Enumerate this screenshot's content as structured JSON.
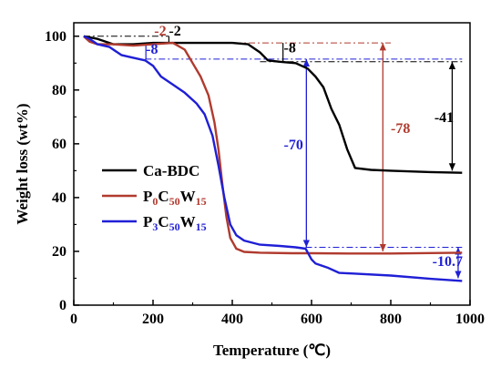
{
  "chart_data": {
    "type": "line",
    "title": "",
    "xlabel": "Temperature (℃)",
    "ylabel": "Weight loss (wt%)",
    "xlim": [
      0,
      1000
    ],
    "ylim": [
      0,
      105
    ],
    "xticks": [
      0,
      200,
      400,
      600,
      800,
      1000
    ],
    "yticks": [
      0,
      20,
      40,
      60,
      80,
      100
    ],
    "xtick_labels": [
      "0",
      "200",
      "400",
      "600",
      "800",
      "1000"
    ],
    "ytick_labels": [
      "0",
      "20",
      "40",
      "60",
      "80",
      "100"
    ],
    "grid": false,
    "legend_position": "center-left",
    "series": [
      {
        "name": "Ca-BDC",
        "name_parts": [
          [
            "Ca-BDC",
            false
          ]
        ],
        "color": "#000000",
        "points": [
          [
            25,
            100
          ],
          [
            60,
            99
          ],
          [
            100,
            97
          ],
          [
            150,
            97
          ],
          [
            200,
            97.5
          ],
          [
            300,
            97.5
          ],
          [
            400,
            97.5
          ],
          [
            440,
            97
          ],
          [
            470,
            94
          ],
          [
            490,
            91
          ],
          [
            520,
            90.5
          ],
          [
            560,
            90
          ],
          [
            590,
            88
          ],
          [
            610,
            85
          ],
          [
            630,
            81
          ],
          [
            650,
            73
          ],
          [
            670,
            67
          ],
          [
            690,
            58
          ],
          [
            710,
            51
          ],
          [
            750,
            50.3
          ],
          [
            800,
            50
          ],
          [
            900,
            49.5
          ],
          [
            980,
            49.2
          ]
        ]
      },
      {
        "name": "P0C50W15",
        "name_parts": [
          [
            "P",
            false
          ],
          [
            "0",
            true
          ],
          [
            "C",
            false
          ],
          [
            "50",
            true
          ],
          [
            "W",
            false
          ],
          [
            "15",
            true
          ]
        ],
        "color": "#b03a2e",
        "points": [
          [
            25,
            100
          ],
          [
            40,
            98
          ],
          [
            60,
            97
          ],
          [
            100,
            97
          ],
          [
            150,
            96.5
          ],
          [
            200,
            97
          ],
          [
            250,
            97.5
          ],
          [
            280,
            95
          ],
          [
            300,
            90
          ],
          [
            320,
            85
          ],
          [
            340,
            78
          ],
          [
            355,
            68
          ],
          [
            365,
            58
          ],
          [
            375,
            45
          ],
          [
            385,
            33
          ],
          [
            395,
            25
          ],
          [
            410,
            21
          ],
          [
            430,
            19.8
          ],
          [
            470,
            19.5
          ],
          [
            550,
            19.3
          ],
          [
            600,
            19.3
          ],
          [
            700,
            19.2
          ],
          [
            800,
            19.2
          ],
          [
            980,
            19.5
          ]
        ]
      },
      {
        "name": "P3C50W15",
        "name_parts": [
          [
            "P",
            false
          ],
          [
            "3",
            true
          ],
          [
            "C",
            false
          ],
          [
            "50",
            true
          ],
          [
            "W",
            false
          ],
          [
            "15",
            true
          ]
        ],
        "color": "#1f1fd6",
        "points": [
          [
            25,
            100
          ],
          [
            40,
            99
          ],
          [
            60,
            97
          ],
          [
            90,
            96
          ],
          [
            120,
            93
          ],
          [
            150,
            92
          ],
          [
            180,
            91
          ],
          [
            200,
            89
          ],
          [
            220,
            85
          ],
          [
            250,
            82
          ],
          [
            280,
            79
          ],
          [
            310,
            75
          ],
          [
            330,
            71
          ],
          [
            350,
            63
          ],
          [
            365,
            52
          ],
          [
            380,
            40
          ],
          [
            395,
            30
          ],
          [
            410,
            26
          ],
          [
            430,
            24
          ],
          [
            470,
            22.5
          ],
          [
            520,
            22
          ],
          [
            560,
            21.5
          ],
          [
            585,
            21
          ],
          [
            600,
            17
          ],
          [
            610,
            15.5
          ],
          [
            640,
            14
          ],
          [
            670,
            12
          ],
          [
            700,
            11.8
          ],
          [
            800,
            11
          ],
          [
            900,
            9.8
          ],
          [
            980,
            9
          ]
        ]
      }
    ],
    "annotations": [
      {
        "text": "-2",
        "x": 203,
        "y": 100.3,
        "color": "#b03a2e"
      },
      {
        "text": "-2",
        "x": 240,
        "y": 100.3,
        "color": "#000000"
      },
      {
        "text": "-8",
        "x": 182,
        "y": 93.5,
        "color": "#1f1fd6"
      },
      {
        "text": "-8",
        "x": 530,
        "y": 94,
        "color": "#000000"
      },
      {
        "text": "-70",
        "x": 530,
        "y": 58,
        "color": "#1f1fd6"
      },
      {
        "text": "-78",
        "x": 800,
        "y": 64,
        "color": "#b03a2e"
      },
      {
        "text": "-41",
        "x": 910,
        "y": 68,
        "color": "#000000"
      },
      {
        "text": "-10.7",
        "x": 905,
        "y": 14.5,
        "color": "#1f1fd6"
      }
    ]
  }
}
